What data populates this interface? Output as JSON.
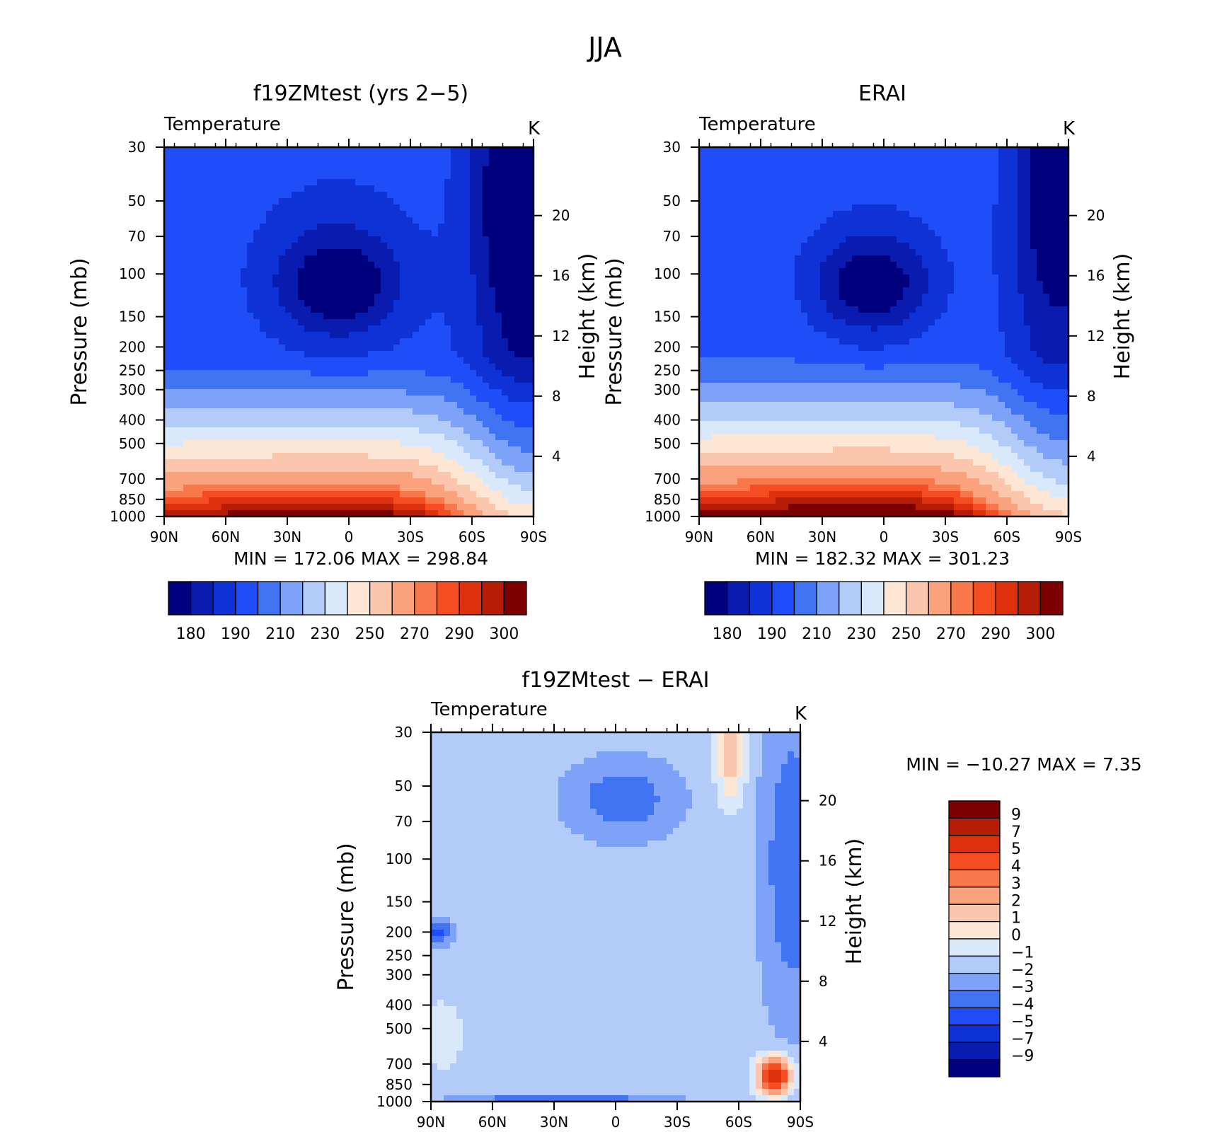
{
  "figure_title": "JJA",
  "colors": {
    "temperature": [
      "#00007f",
      "#0a1caf",
      "#0f32d6",
      "#1f4df7",
      "#4174f2",
      "#7ea2f7",
      "#b3cbf8",
      "#d9e8fb",
      "#fde6d3",
      "#fbc6ab",
      "#f9a27d",
      "#f9784b",
      "#f54d21",
      "#de300d",
      "#b51d07",
      "#7d0000"
    ],
    "difference": [
      "#00007f",
      "#0a1caf",
      "#0f32d6",
      "#1f4df7",
      "#4174f2",
      "#7ea2f7",
      "#b3cbf8",
      "#d9e8fb",
      "#fde6d3",
      "#fbc6ab",
      "#f9a27d",
      "#f9784b",
      "#f54d21",
      "#de300d",
      "#b51d07",
      "#7d0000"
    ]
  },
  "chart_data": [
    {
      "type": "heatmap",
      "title": "f19ZMtest (yrs 2−5)",
      "subtitle": "Temperature",
      "units": "K",
      "ylabel": "Pressure (mb)",
      "ylabel_right": "Height (km)",
      "x_ticks": [
        "90N",
        "60N",
        "30N",
        "0",
        "30S",
        "60S",
        "90S"
      ],
      "y_ticks": [
        30,
        50,
        70,
        100,
        150,
        200,
        250,
        300,
        400,
        500,
        700,
        850,
        1000
      ],
      "right_ticks": [
        20,
        16,
        12,
        8,
        4
      ],
      "stats": "MIN = 172.06   MAX = 298.84",
      "colorbar_labels": [
        "180",
        "190",
        "210",
        "230",
        "250",
        "270",
        "290",
        "300"
      ],
      "field": {
        "kind": "model",
        "min": 172.06,
        "max": 298.84
      }
    },
    {
      "type": "heatmap",
      "title": "ERAI",
      "subtitle": "Temperature",
      "units": "K",
      "ylabel": "Pressure (mb)",
      "ylabel_right": "Height (km)",
      "x_ticks": [
        "90N",
        "60N",
        "30N",
        "0",
        "30S",
        "60S",
        "90S"
      ],
      "y_ticks": [
        30,
        50,
        70,
        100,
        150,
        200,
        250,
        300,
        400,
        500,
        700,
        850,
        1000
      ],
      "right_ticks": [
        20,
        16,
        12,
        8,
        4
      ],
      "stats": "MIN = 182.32   MAX = 301.23",
      "colorbar_labels": [
        "180",
        "190",
        "210",
        "230",
        "250",
        "270",
        "290",
        "300"
      ],
      "field": {
        "kind": "obs",
        "min": 182.32,
        "max": 301.23
      }
    },
    {
      "type": "heatmap",
      "title": "f19ZMtest − ERAI",
      "subtitle": "Temperature",
      "units": "K",
      "ylabel": "Pressure (mb)",
      "ylabel_right": "Height (km)",
      "x_ticks": [
        "90N",
        "60N",
        "30N",
        "0",
        "30S",
        "60S",
        "90S"
      ],
      "y_ticks": [
        30,
        50,
        70,
        100,
        150,
        200,
        250,
        300,
        400,
        500,
        700,
        850,
        1000
      ],
      "right_ticks": [
        20,
        16,
        12,
        8,
        4
      ],
      "stats": "MIN = −10.27   MAX =    7.35",
      "colorbar_labels": [
        "9",
        "7",
        "5",
        "4",
        "3",
        "2",
        "1",
        "0",
        "−1",
        "−2",
        "−3",
        "−4",
        "−5",
        "−7",
        "−9"
      ],
      "field": {
        "kind": "diff",
        "min": -10.27,
        "max": 7.35
      }
    }
  ]
}
